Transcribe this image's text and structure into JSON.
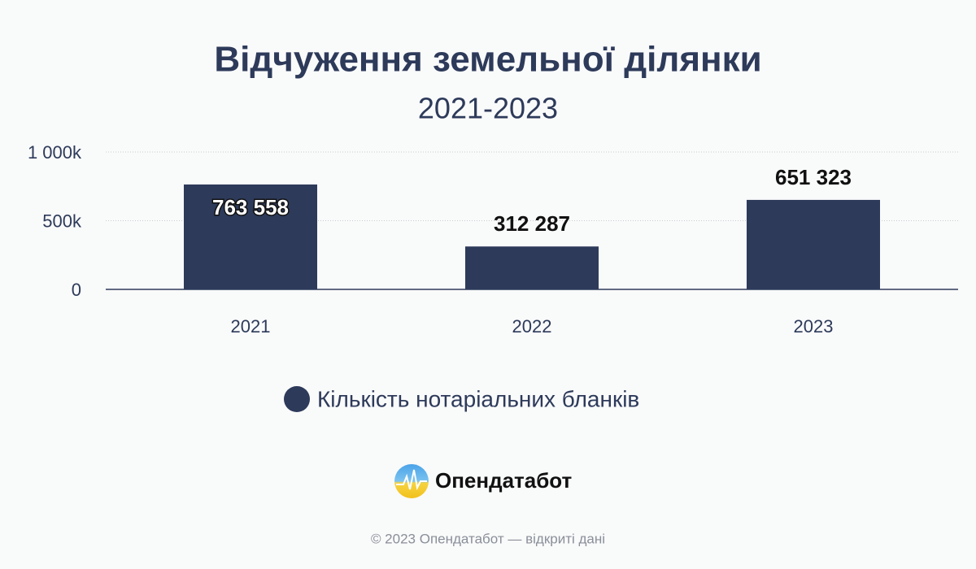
{
  "chart_data": {
    "type": "bar",
    "title": "Відчуження земельної ділянки",
    "subtitle": "2021-2023",
    "categories": [
      "2021",
      "2022",
      "2023"
    ],
    "series": [
      {
        "name": "Кількість нотаріальних бланків",
        "color": "#2d3a5a",
        "values": [
          763558,
          312287,
          651323
        ],
        "value_labels": [
          "763 558",
          "312 287",
          "651 323"
        ]
      }
    ],
    "ylim": [
      0,
      1000000
    ],
    "yticks": [
      0,
      {
        "value": 500000,
        "label": "500k"
      },
      {
        "value": 1000000,
        "label": "1 000k"
      }
    ],
    "grid": true,
    "brand": "Опендатабот",
    "footer": "© 2023 Опендатабот — відкриті дані"
  }
}
